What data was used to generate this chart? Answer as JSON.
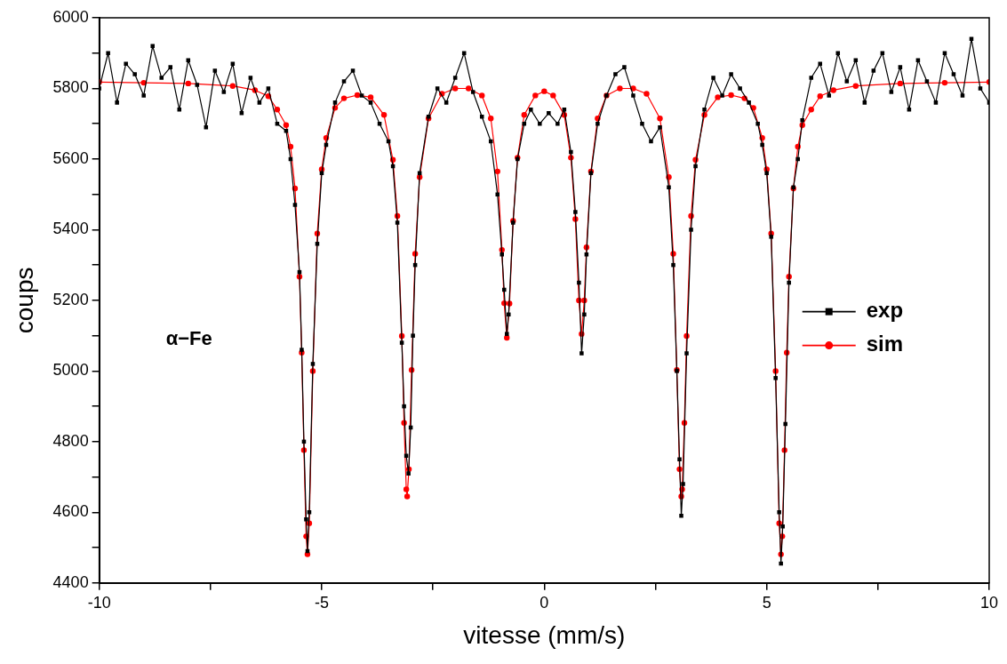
{
  "chart_data": {
    "type": "line",
    "xlabel": "vitesse (mm/s)",
    "ylabel": "coups",
    "annotations": [
      "α−Fe"
    ],
    "xlim": [
      -10,
      10
    ],
    "xticks": [
      -10,
      {
        "value": -7.5,
        "label": null
      },
      -5,
      {
        "value": -2.5,
        "label": null
      },
      0,
      {
        "value": 2.5,
        "label": null
      },
      5,
      {
        "value": 7.5,
        "label": null
      },
      10
    ],
    "ylim": [
      4400,
      6000
    ],
    "yticks": [
      4400,
      {
        "value": 4500,
        "label": null
      },
      4600,
      {
        "value": 4700,
        "label": null
      },
      4800,
      {
        "value": 4900,
        "label": null
      },
      5000,
      {
        "value": 5100,
        "label": null
      },
      5200,
      {
        "value": 5300,
        "label": null
      },
      5400,
      {
        "value": 5500,
        "label": null
      },
      5600,
      {
        "value": 5700,
        "label": null
      },
      5800,
      {
        "value": 5900,
        "label": null
      },
      6000
    ],
    "grid": false,
    "legend": "right",
    "line_style": "solid",
    "series": [
      {
        "name": "exp",
        "color": "#000000",
        "marker": "square",
        "x": [
          -10,
          -9.8,
          -9.6,
          -9.4,
          -9.2,
          -9.0,
          -8.8,
          -8.6,
          -8.4,
          -8.2,
          -8.0,
          -7.8,
          -7.6,
          -7.4,
          -7.2,
          -7.0,
          -6.8,
          -6.6,
          -6.4,
          -6.2,
          -6.0,
          -5.8,
          -5.7,
          -5.6,
          -5.5,
          -5.45,
          -5.4,
          -5.35,
          -5.32,
          -5.28,
          -5.2,
          -5.1,
          -5.0,
          -4.9,
          -4.7,
          -4.5,
          -4.3,
          -4.1,
          -3.9,
          -3.7,
          -3.5,
          -3.4,
          -3.3,
          -3.2,
          -3.15,
          -3.1,
          -3.05,
          -3.0,
          -2.95,
          -2.9,
          -2.8,
          -2.6,
          -2.4,
          -2.2,
          -2.0,
          -1.8,
          -1.6,
          -1.4,
          -1.2,
          -1.05,
          -0.95,
          -0.9,
          -0.84,
          -0.8,
          -0.7,
          -0.6,
          -0.45,
          -0.3,
          -0.1,
          0.1,
          0.3,
          0.45,
          0.6,
          0.7,
          0.78,
          0.84,
          0.9,
          0.95,
          1.05,
          1.2,
          1.4,
          1.6,
          1.8,
          2.0,
          2.2,
          2.4,
          2.6,
          2.8,
          2.9,
          2.98,
          3.04,
          3.08,
          3.12,
          3.2,
          3.3,
          3.4,
          3.6,
          3.8,
          4.0,
          4.2,
          4.4,
          4.6,
          4.8,
          4.9,
          5.0,
          5.1,
          5.2,
          5.28,
          5.32,
          5.36,
          5.42,
          5.5,
          5.6,
          5.7,
          5.8,
          6.0,
          6.2,
          6.4,
          6.6,
          6.8,
          7.0,
          7.2,
          7.4,
          7.6,
          7.8,
          8.0,
          8.2,
          8.4,
          8.6,
          8.8,
          9.0,
          9.2,
          9.4,
          9.6,
          9.8,
          10.0
        ],
        "values": [
          5800,
          5900,
          5760,
          5870,
          5840,
          5780,
          5920,
          5830,
          5860,
          5740,
          5880,
          5810,
          5690,
          5850,
          5790,
          5870,
          5730,
          5830,
          5760,
          5800,
          5700,
          5680,
          5600,
          5470,
          5280,
          5060,
          4800,
          4580,
          4490,
          4600,
          5020,
          5360,
          5560,
          5640,
          5760,
          5820,
          5850,
          5780,
          5760,
          5700,
          5650,
          5580,
          5420,
          5080,
          4900,
          4760,
          4710,
          4840,
          5100,
          5300,
          5560,
          5720,
          5800,
          5760,
          5830,
          5900,
          5790,
          5720,
          5650,
          5500,
          5330,
          5230,
          5105,
          5160,
          5420,
          5600,
          5700,
          5740,
          5700,
          5730,
          5700,
          5740,
          5620,
          5450,
          5250,
          5050,
          5160,
          5330,
          5560,
          5700,
          5780,
          5840,
          5860,
          5780,
          5700,
          5650,
          5690,
          5520,
          5300,
          5000,
          4750,
          4590,
          4680,
          5050,
          5400,
          5580,
          5740,
          5830,
          5780,
          5840,
          5800,
          5760,
          5700,
          5640,
          5560,
          5380,
          4980,
          4600,
          4455,
          4560,
          4850,
          5250,
          5520,
          5600,
          5710,
          5830,
          5870,
          5780,
          5900,
          5820,
          5880,
          5760,
          5850,
          5900,
          5790,
          5860,
          5740,
          5880,
          5820,
          5760,
          5900,
          5840,
          5780,
          5940,
          5800,
          5760
        ]
      },
      {
        "name": "sim",
        "color": "#ff0000",
        "marker": "circle",
        "x": [
          -10,
          -9,
          -8,
          -7,
          -6.5,
          -6.2,
          -6,
          -5.8,
          -5.7,
          -5.6,
          -5.5,
          -5.45,
          -5.4,
          -5.35,
          -5.32,
          -5.28,
          -5.2,
          -5.1,
          -5.0,
          -4.9,
          -4.7,
          -4.5,
          -4.2,
          -3.9,
          -3.6,
          -3.4,
          -3.3,
          -3.2,
          -3.15,
          -3.1,
          -3.08,
          -3.04,
          -2.98,
          -2.9,
          -2.8,
          -2.6,
          -2.3,
          -2.0,
          -1.7,
          -1.4,
          -1.2,
          -1.05,
          -0.95,
          -0.9,
          -0.84,
          -0.78,
          -0.7,
          -0.6,
          -0.45,
          -0.2,
          0,
          0.2,
          0.45,
          0.6,
          0.7,
          0.78,
          0.84,
          0.9,
          0.95,
          1.05,
          1.2,
          1.4,
          1.7,
          2.0,
          2.3,
          2.6,
          2.8,
          2.9,
          2.98,
          3.04,
          3.08,
          3.1,
          3.15,
          3.2,
          3.3,
          3.4,
          3.6,
          3.9,
          4.2,
          4.5,
          4.7,
          4.9,
          5.0,
          5.1,
          5.2,
          5.28,
          5.32,
          5.35,
          5.4,
          5.45,
          5.5,
          5.6,
          5.7,
          5.8,
          6.0,
          6.2,
          6.5,
          7,
          8,
          9,
          10
        ],
        "values": [
          5818,
          5816,
          5814,
          5807,
          5795,
          5778,
          5740,
          5696,
          5635,
          5517,
          5267,
          5052,
          4776,
          4532,
          4481,
          4569,
          5000,
          5389,
          5571,
          5660,
          5745,
          5772,
          5781,
          5775,
          5725,
          5598,
          5439,
          5099,
          4853,
          4665,
          4645,
          4722,
          5003,
          5332,
          5549,
          5715,
          5785,
          5800,
          5800,
          5780,
          5715,
          5565,
          5343,
          5192,
          5094,
          5191,
          5425,
          5604,
          5725,
          5780,
          5792,
          5780,
          5725,
          5604,
          5430,
          5200,
          5105,
          5200,
          5350,
          5565,
          5715,
          5780,
          5800,
          5800,
          5785,
          5715,
          5549,
          5332,
          5003,
          4722,
          4645,
          4665,
          4853,
          5099,
          5439,
          5598,
          5725,
          5775,
          5781,
          5772,
          5745,
          5660,
          5571,
          5389,
          5000,
          4569,
          4481,
          4532,
          4776,
          5052,
          5267,
          5517,
          5635,
          5696,
          5740,
          5778,
          5795,
          5807,
          5814,
          5816,
          5818
        ]
      }
    ]
  }
}
